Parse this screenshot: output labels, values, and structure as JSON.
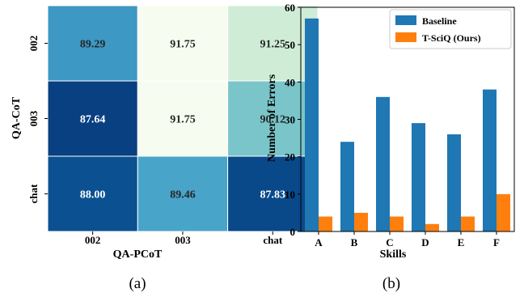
{
  "chart_data": [
    {
      "type": "heatmap",
      "caption": "(a)",
      "xlabel": "QA-PCoT",
      "ylabel": "QA-CoT",
      "x_categories": [
        "002",
        "003",
        "chat"
      ],
      "y_categories": [
        "002",
        "003",
        "chat"
      ],
      "values": [
        [
          89.29,
          91.75,
          91.25
        ],
        [
          87.64,
          91.75,
          90.12
        ],
        [
          88.0,
          89.46,
          87.83
        ]
      ],
      "value_labels": [
        [
          "89.29",
          "91.75",
          "91.25"
        ],
        [
          "87.64",
          "91.75",
          "90.12"
        ],
        [
          "88.00",
          "89.46",
          "87.83"
        ]
      ],
      "colormap": "GnBu_r",
      "grid": false
    },
    {
      "type": "bar",
      "caption": "(b)",
      "xlabel": "Skills",
      "ylabel": "Number of Errors",
      "categories": [
        "A",
        "B",
        "C",
        "D",
        "E",
        "F"
      ],
      "series": [
        {
          "name": "Baseline",
          "values": [
            57,
            24,
            36,
            29,
            26,
            38
          ],
          "color": "#1f77b4"
        },
        {
          "name": "T-SciQ (Ours)",
          "values": [
            4,
            5,
            4,
            2,
            4,
            10
          ],
          "color": "#ff7f0e"
        }
      ],
      "ylim": [
        0,
        60
      ],
      "yticks": [
        "0",
        "10",
        "20",
        "30",
        "40",
        "50",
        "60"
      ],
      "legend": "top-right",
      "grid": false
    }
  ]
}
